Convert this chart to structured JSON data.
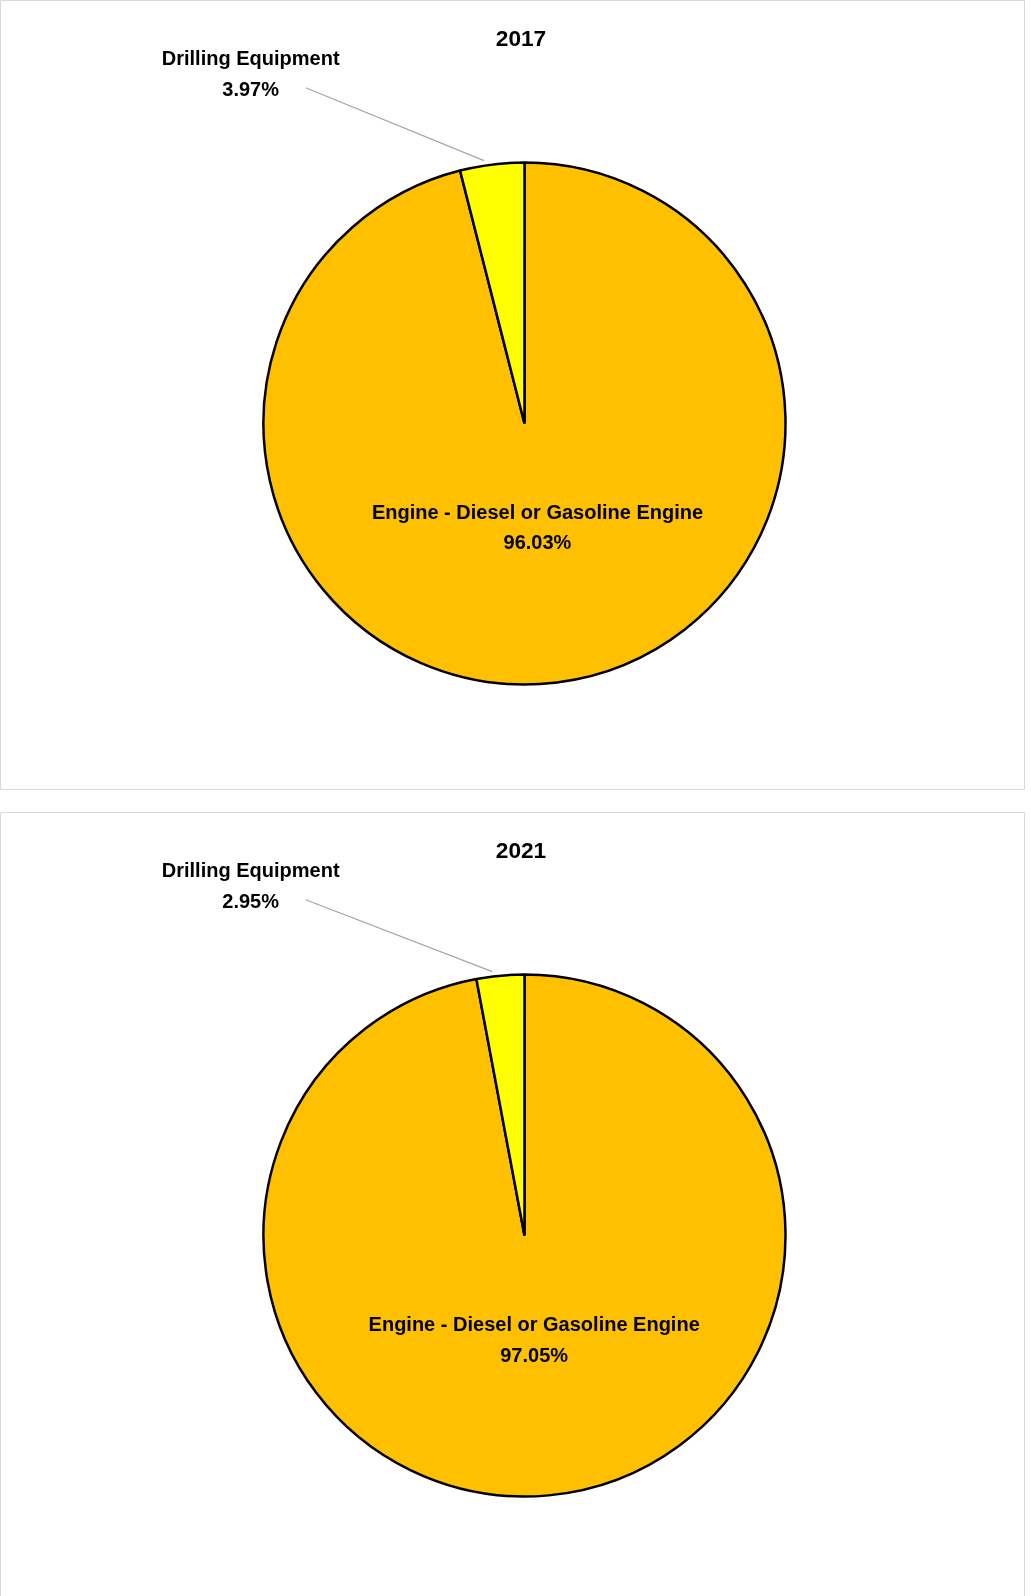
{
  "chart_data": [
    {
      "type": "pie",
      "title": "2017",
      "categories": [
        "Engine - Diesel or Gasoline Engine",
        "Drilling Equipment"
      ],
      "values": [
        96.03,
        3.97
      ],
      "colors": [
        "#ffc000",
        "#ffff00"
      ],
      "value_labels": [
        "96.03%",
        "3.97%"
      ]
    },
    {
      "type": "pie",
      "title": "2021",
      "categories": [
        "Engine - Diesel or Gasoline Engine",
        "Drilling Equipment"
      ],
      "values": [
        97.05,
        2.95
      ],
      "colors": [
        "#ffc000",
        "#ffff00"
      ],
      "value_labels": [
        "97.05%",
        "2.95%"
      ]
    }
  ]
}
